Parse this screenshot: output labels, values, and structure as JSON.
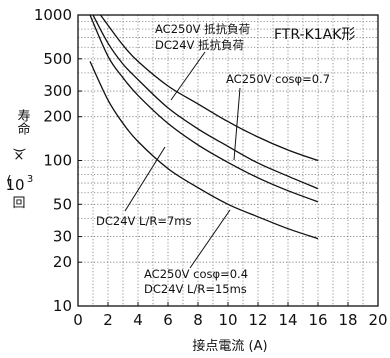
{
  "chart_data": {
    "type": "line",
    "model": "FTR-K1AK形",
    "xlabel": "接点電流 (A)",
    "ylabel": {
      "top": "寿命",
      "paren_open": "(",
      "close": ")",
      "unit_top": "×",
      "unit_base": "10",
      "unit_exp": "3",
      "unit_suffix": "回"
    },
    "xlim": [
      0,
      20
    ],
    "ylim": [
      10,
      1000
    ],
    "y_scale": "log",
    "grid": true,
    "x_ticks": [
      "0",
      "2",
      "4",
      "6",
      "8",
      "10",
      "12",
      "14",
      "16",
      "18",
      "20"
    ],
    "y_ticks": [
      {
        "value": 1000,
        "label": "1000"
      },
      {
        "value": 500,
        "label": "500"
      },
      {
        "value": 300,
        "label": "300"
      },
      {
        "value": 200,
        "label": "200"
      },
      {
        "value": 100,
        "label": "100"
      },
      {
        "value": 50,
        "label": "50"
      },
      {
        "value": 30,
        "label": "30"
      },
      {
        "value": 20,
        "label": "20"
      },
      {
        "value": 10,
        "label": "10"
      }
    ],
    "series": [
      {
        "x": [
          1.5,
          2,
          3,
          4,
          6,
          8,
          10,
          12,
          14,
          16
        ],
        "y": [
          1000,
          850,
          620,
          480,
          325,
          245,
          185,
          145,
          118,
          100
        ]
      },
      {
        "x": [
          1.0,
          2,
          3,
          4,
          6,
          8,
          10,
          12,
          14,
          16
        ],
        "y": [
          1000,
          640,
          460,
          360,
          230,
          165,
          125,
          96,
          78,
          64
        ]
      },
      {
        "x": [
          0.8,
          2,
          3,
          4,
          6,
          8,
          10,
          12,
          14,
          16
        ],
        "y": [
          1000,
          520,
          370,
          280,
          180,
          128,
          97,
          76,
          62,
          52
        ]
      },
      {
        "x": [
          0.8,
          2,
          3,
          4,
          6,
          8,
          10,
          12,
          14,
          16
        ],
        "y": [
          480,
          260,
          180,
          135,
          88,
          65,
          50,
          41,
          34,
          29
        ]
      }
    ],
    "annotations": [
      {
        "lines": [
          "AC250V 抵抗負荷",
          "DC24V 抵抗負荷"
        ],
        "points_to": [
          0,
          1
        ]
      },
      {
        "lines": [
          "AC250V cosφ=0.7"
        ],
        "points_to": [
          2
        ]
      },
      {
        "lines": [
          "DC24V L/R=7ms"
        ],
        "points_to": [
          1
        ]
      },
      {
        "lines": [
          "AC250V cosφ=0.4",
          "DC24V L/R=15ms"
        ],
        "points_to": [
          3
        ]
      }
    ]
  }
}
